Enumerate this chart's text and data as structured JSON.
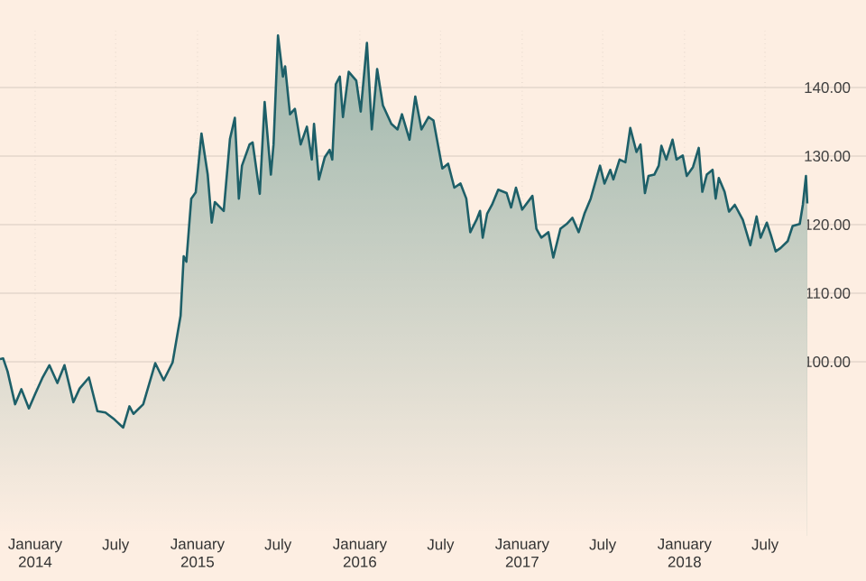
{
  "chart_data": {
    "type": "area",
    "color": "#1d5f68",
    "grid": true,
    "x": [
      "2013-10-14",
      "2013-10-21",
      "2013-10-31",
      "2013-11-17",
      "2013-12-01",
      "2013-12-18",
      "2014-01-01",
      "2014-01-17",
      "2014-02-02",
      "2014-02-20",
      "2014-03-08",
      "2014-03-28",
      "2014-04-11",
      "2014-05-02",
      "2014-05-21",
      "2014-06-08",
      "2014-06-28",
      "2014-07-18",
      "2014-08-01",
      "2014-08-10",
      "2014-09-01",
      "2014-09-28",
      "2014-10-17",
      "2014-11-06",
      "2014-11-24",
      "2014-12-01",
      "2014-12-07",
      "2014-12-18",
      "2014-12-28",
      "2015-01-10",
      "2015-01-24",
      "2015-02-02",
      "2015-02-09",
      "2015-03-01",
      "2015-03-15",
      "2015-03-26",
      "2015-04-04",
      "2015-04-11",
      "2015-04-28",
      "2015-05-05",
      "2015-05-21",
      "2015-06-01",
      "2015-06-15",
      "2015-06-21",
      "2015-07-01",
      "2015-07-12",
      "2015-07-17",
      "2015-07-28",
      "2015-08-08",
      "2015-08-21",
      "2015-09-04",
      "2015-09-15",
      "2015-09-20",
      "2015-10-01",
      "2015-10-14",
      "2015-10-25",
      "2015-10-31",
      "2015-11-08",
      "2015-11-17",
      "2015-11-24",
      "2015-12-07",
      "2015-12-24",
      "2016-01-03",
      "2016-01-17",
      "2016-01-28",
      "2016-02-09",
      "2016-02-22",
      "2016-03-12",
      "2016-03-26",
      "2016-04-05",
      "2016-04-22",
      "2016-05-05",
      "2016-05-19",
      "2016-06-04",
      "2016-06-15",
      "2016-06-25",
      "2016-07-05",
      "2016-07-18",
      "2016-08-01",
      "2016-08-15",
      "2016-08-28",
      "2016-09-06",
      "2016-09-20",
      "2016-09-28",
      "2016-10-04",
      "2016-10-14",
      "2016-10-25",
      "2016-11-08",
      "2016-11-27",
      "2016-12-07",
      "2016-12-18",
      "2017-01-01",
      "2017-01-24",
      "2017-02-02",
      "2017-02-13",
      "2017-03-01",
      "2017-03-12",
      "2017-03-28",
      "2017-04-11",
      "2017-04-24",
      "2017-05-08",
      "2017-05-21",
      "2017-06-04",
      "2017-06-17",
      "2017-06-25",
      "2017-07-05",
      "2017-07-18",
      "2017-07-25",
      "2017-08-08",
      "2017-08-21",
      "2017-09-01",
      "2017-09-15",
      "2017-09-24",
      "2017-10-04",
      "2017-10-12",
      "2017-10-25",
      "2017-11-04",
      "2017-11-10",
      "2017-11-21",
      "2017-12-05",
      "2017-12-14",
      "2017-12-28",
      "2018-01-06",
      "2018-01-20",
      "2018-02-02",
      "2018-02-10",
      "2018-02-20",
      "2018-03-05",
      "2018-03-12",
      "2018-03-19",
      "2018-04-01",
      "2018-04-11",
      "2018-04-24",
      "2018-05-12",
      "2018-05-29",
      "2018-06-12",
      "2018-06-21",
      "2018-07-05",
      "2018-07-14",
      "2018-07-25",
      "2018-08-05",
      "2018-08-21",
      "2018-09-01",
      "2018-09-17",
      "2018-09-24",
      "2018-10-01",
      "2018-10-04"
    ],
    "values": [
      100.4,
      100.5,
      98.6,
      93.8,
      96,
      93.2,
      95.3,
      97.6,
      99.5,
      96.9,
      99.5,
      94.1,
      96.1,
      97.7,
      92.8,
      92.6,
      91.6,
      90.4,
      93.5,
      92.4,
      93.8,
      99.8,
      97.3,
      99.9,
      106.7,
      115.4,
      114.6,
      123.8,
      124.7,
      133.3,
      127.3,
      120.3,
      123.3,
      122,
      132.5,
      135.6,
      123.8,
      128.6,
      131.7,
      132,
      124.5,
      137.9,
      127.3,
      131.7,
      147.6,
      141.6,
      143.1,
      136.1,
      136.9,
      131.7,
      134.3,
      129.5,
      134.7,
      126.6,
      129.8,
      130.9,
      129.5,
      140.5,
      141.6,
      135.7,
      142.3,
      141,
      136.5,
      146.5,
      133.9,
      142.7,
      137.4,
      134.7,
      133.9,
      136.1,
      132.4,
      138.7,
      133.9,
      135.7,
      135.2,
      131.7,
      128.2,
      128.9,
      125.4,
      126,
      123.8,
      118.9,
      120.7,
      122,
      118.1,
      121.6,
      122.9,
      125.1,
      124.6,
      122.5,
      125.4,
      122.2,
      124.2,
      119.4,
      118.1,
      118.9,
      115.2,
      119.4,
      120.1,
      121,
      118.9,
      121.6,
      123.8,
      126.8,
      128.6,
      126,
      128,
      126.6,
      129.5,
      129.1,
      134.1,
      130.6,
      131.7,
      124.6,
      127.1,
      127.3,
      128.6,
      131.5,
      129.5,
      132.4,
      129.5,
      130.1,
      127.1,
      128.4,
      131.2,
      124.8,
      127.3,
      128,
      123.8,
      126.8,
      124.8,
      121.9,
      122.9,
      120.7,
      117,
      121.2,
      118.1,
      120.3,
      118.5,
      116.1,
      116.6,
      117.6,
      119.8,
      120.1,
      122.9,
      127.1,
      123.1
    ],
    "xlim": [
      "2013-10-14",
      "2019-02-13"
    ],
    "ylim": [
      74.6,
      148.3
    ],
    "xticks": [
      {
        "value": "2014-01-01",
        "label": "January 2014"
      },
      {
        "value": "2014-07-01",
        "label": "July"
      },
      {
        "value": "2015-01-01",
        "label": "January 2015"
      },
      {
        "value": "2015-07-01",
        "label": "July"
      },
      {
        "value": "2016-01-01",
        "label": "January 2016"
      },
      {
        "value": "2016-07-01",
        "label": "July"
      },
      {
        "value": "2017-01-01",
        "label": "January 2017"
      },
      {
        "value": "2017-07-01",
        "label": "July"
      },
      {
        "value": "2018-01-01",
        "label": "January 2018"
      },
      {
        "value": "2018-07-01",
        "label": "July"
      }
    ],
    "yticks": [
      {
        "value": 100,
        "label": "100.00"
      },
      {
        "value": 110,
        "label": "110.00"
      },
      {
        "value": 120,
        "label": "120.00"
      },
      {
        "value": 130,
        "label": "130.00"
      },
      {
        "value": 140,
        "label": "140.00"
      }
    ]
  }
}
